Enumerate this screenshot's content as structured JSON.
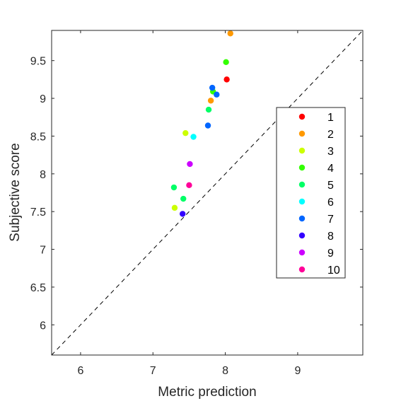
{
  "chart_data": {
    "type": "scatter",
    "title": "",
    "xlabel": "Metric prediction",
    "ylabel": "Subjective score",
    "xlim": [
      5.6,
      9.9
    ],
    "ylim": [
      5.6,
      9.9
    ],
    "xticks": [
      "6",
      "7",
      "8",
      "9"
    ],
    "yticks": [
      "6",
      "6.5",
      "7",
      "7.5",
      "8",
      "8.5",
      "9",
      "9.5"
    ],
    "reference_line": "y = x (dashed)",
    "legend_position": "right",
    "series": [
      {
        "name": "1",
        "color": "#ff0000",
        "points": [
          [
            8.02,
            9.25
          ]
        ]
      },
      {
        "name": "2",
        "color": "#ff9900",
        "points": [
          [
            8.07,
            9.86
          ],
          [
            7.8,
            8.97
          ]
        ]
      },
      {
        "name": "3",
        "color": "#ccff00",
        "points": [
          [
            7.45,
            8.54
          ],
          [
            7.3,
            7.55
          ]
        ]
      },
      {
        "name": "4",
        "color": "#33ff00",
        "points": [
          [
            8.01,
            9.48
          ],
          [
            7.83,
            9.09
          ]
        ]
      },
      {
        "name": "5",
        "color": "#00ff66",
        "points": [
          [
            7.77,
            8.85
          ],
          [
            7.29,
            7.82
          ],
          [
            7.42,
            7.67
          ]
        ]
      },
      {
        "name": "6",
        "color": "#00ffff",
        "points": [
          [
            7.56,
            8.49
          ]
        ]
      },
      {
        "name": "7",
        "color": "#0066ff",
        "points": [
          [
            7.82,
            9.14
          ],
          [
            7.88,
            9.05
          ],
          [
            7.76,
            8.64
          ]
        ]
      },
      {
        "name": "8",
        "color": "#3300ff",
        "points": [
          [
            7.41,
            7.47
          ]
        ]
      },
      {
        "name": "9",
        "color": "#cc00ff",
        "points": [
          [
            7.51,
            8.13
          ]
        ]
      },
      {
        "name": "10",
        "color": "#ff0099",
        "points": [
          [
            7.5,
            7.85
          ]
        ]
      }
    ]
  }
}
